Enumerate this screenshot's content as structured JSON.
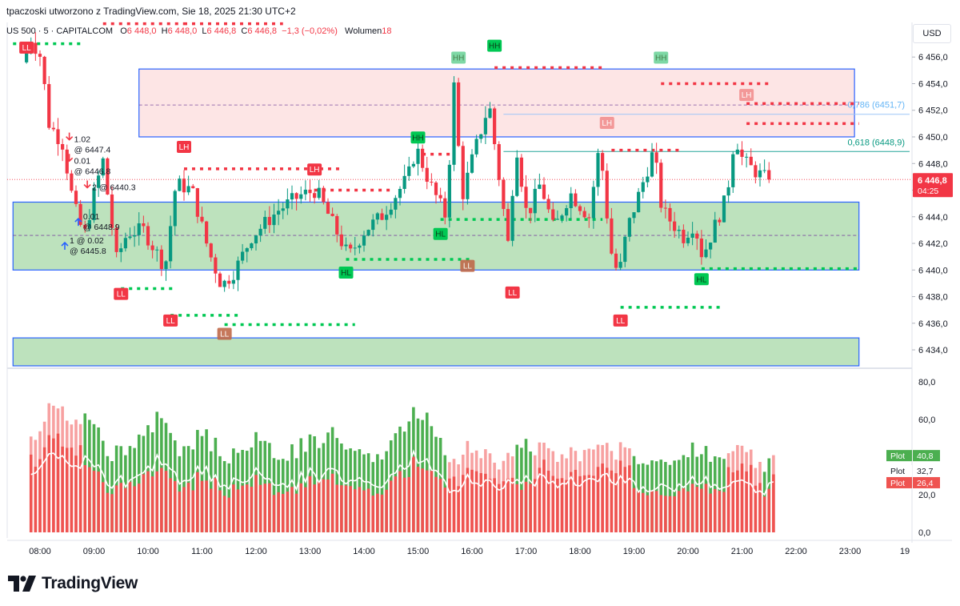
{
  "header": {
    "attribution": "tpaczoski utworzono z TradingView.com, Sie 18, 2025 21:30 UTC+2"
  },
  "legend": {
    "symbol": "US 500 · 5 · CAPITALCOM",
    "o_label": "O",
    "o_value": "6 448,0",
    "h_label": "H",
    "h_value": "6 448,0",
    "l_label": "L",
    "l_value": "6 446,8",
    "c_label": "C",
    "c_value": "6 446,8",
    "change": "−1,3 (−0,02%)",
    "volume_label": "Wolumen",
    "volume_value": "18"
  },
  "toolbar": {
    "currency": "USD"
  },
  "footer": {
    "logo_text": "TradingView"
  },
  "colors": {
    "up": "#089981",
    "down": "#f23645",
    "zone_green": "#b6dfb6",
    "zone_red": "#fde0e1",
    "zone_border": "#2962ff",
    "osc_green": "#4caf50",
    "osc_red": "#ef5350",
    "osc_pink": "#f7a1a1"
  },
  "chart_data": [
    {
      "type": "candlestick",
      "title": "US 500 · 5 · CAPITALCOM",
      "ylim": [
        6432.8,
        6458.6
      ],
      "price_ticks": [
        "6 456,0",
        "6 454,0",
        "6 452,0",
        "6 450,0",
        "6 448,0",
        "6 446,0",
        "6 444,0",
        "6 442,0",
        "6 440,0",
        "6 438,0",
        "6 436,0",
        "6 434,0"
      ],
      "price_tick_values": [
        6456,
        6454,
        6452,
        6450,
        6448,
        6446,
        6444,
        6442,
        6440,
        6438,
        6436,
        6434
      ],
      "time_ticks": [
        "08:00",
        "09:00",
        "10:00",
        "11:00",
        "12:00",
        "13:00",
        "14:00",
        "15:00",
        "16:00",
        "17:00",
        "18:00",
        "19:00",
        "20:00",
        "21:00",
        "22:00",
        "23:00",
        "19"
      ],
      "current_price": "6 446,8",
      "countdown": "04:25",
      "current_value": 6446.8,
      "waypoints": [
        [
          7.75,
          6455.6
        ],
        [
          7.9,
          6457.5
        ],
        [
          8.1,
          6456.0
        ],
        [
          8.25,
          6451.0
        ],
        [
          8.5,
          6449.5
        ],
        [
          8.7,
          6445.0
        ],
        [
          8.9,
          6442.5
        ],
        [
          9.1,
          6446.0
        ],
        [
          9.25,
          6448.2
        ],
        [
          9.5,
          6440.8
        ],
        [
          9.7,
          6442.8
        ],
        [
          10.0,
          6443.0
        ],
        [
          10.4,
          6440.2
        ],
        [
          10.6,
          6446.5
        ],
        [
          10.9,
          6446.0
        ],
        [
          11.2,
          6441.5
        ],
        [
          11.45,
          6438.8
        ],
        [
          11.7,
          6440.0
        ],
        [
          12.0,
          6442.5
        ],
        [
          12.5,
          6444.5
        ],
        [
          12.9,
          6445.6
        ],
        [
          13.2,
          6446.0
        ],
        [
          13.5,
          6443.5
        ],
        [
          13.8,
          6441.0
        ],
        [
          14.1,
          6443.0
        ],
        [
          14.4,
          6444.0
        ],
        [
          14.7,
          6445.8
        ],
        [
          14.9,
          6447.0
        ],
        [
          15.05,
          6449.2
        ],
        [
          15.3,
          6446.5
        ],
        [
          15.6,
          6444.0
        ],
        [
          15.75,
          6453.8
        ],
        [
          15.9,
          6445.5
        ],
        [
          16.1,
          6448.5
        ],
        [
          16.4,
          6452.5
        ],
        [
          16.6,
          6446.5
        ],
        [
          16.75,
          6442.0
        ],
        [
          16.9,
          6449.5
        ],
        [
          17.1,
          6444.0
        ],
        [
          17.35,
          6446.5
        ],
        [
          17.6,
          6443.0
        ],
        [
          17.9,
          6445.8
        ],
        [
          18.25,
          6444.0
        ],
        [
          18.45,
          6449.5
        ],
        [
          18.65,
          6441.5
        ],
        [
          18.8,
          6439.5
        ],
        [
          18.95,
          6443.0
        ],
        [
          19.2,
          6446.0
        ],
        [
          19.45,
          6449.0
        ],
        [
          19.6,
          6444.5
        ],
        [
          19.8,
          6443.5
        ],
        [
          20.0,
          6442.5
        ],
        [
          20.2,
          6443.5
        ],
        [
          20.35,
          6441.0
        ],
        [
          20.6,
          6443.5
        ],
        [
          20.8,
          6445.5
        ],
        [
          20.95,
          6450.2
        ],
        [
          21.1,
          6448.2
        ],
        [
          21.3,
          6447.5
        ],
        [
          21.55,
          6446.8
        ]
      ],
      "zones": [
        {
          "name": "supply-zone",
          "color": "red",
          "from_time": "09:50",
          "to_time": "23:05",
          "low": 6450.0,
          "high": 6455.1,
          "mid": 6452.4
        },
        {
          "name": "demand-zone",
          "color": "green",
          "from_time": "07:30",
          "to_time": "23:10",
          "low": 6440.0,
          "high": 6445.1,
          "mid": 6442.6
        },
        {
          "name": "lower-demand-zone",
          "color": "green",
          "from_time": "07:30",
          "to_time": "23:10",
          "low": 6432.8,
          "high": 6434.9
        }
      ],
      "fib_levels": [
        {
          "label": "0,786 (6451,7)",
          "value": 6451.7
        },
        {
          "label": "0,618 (6448,9)",
          "value": 6448.9
        }
      ],
      "structure_labels": [
        {
          "text": "HH",
          "time": "15:45",
          "price": 6455.2,
          "kind": "hh-faded",
          "pos": "above"
        },
        {
          "text": "HH",
          "time": "16:25",
          "price": 6456.1,
          "kind": "hh",
          "pos": "above"
        },
        {
          "text": "HH",
          "time": "19:30",
          "price": 6455.2,
          "kind": "hh-faded",
          "pos": "above"
        },
        {
          "text": "HH",
          "time": "15:00",
          "price": 6449.2,
          "kind": "hh",
          "pos": "above"
        },
        {
          "text": "LH",
          "time": "10:40",
          "price": 6448.5,
          "kind": "lh",
          "pos": "above"
        },
        {
          "text": "LH",
          "time": "13:05",
          "price": 6446.8,
          "kind": "lh",
          "pos": "above"
        },
        {
          "text": "LH",
          "time": "18:30",
          "price": 6450.3,
          "kind": "lh-faded",
          "pos": "above"
        },
        {
          "text": "LH",
          "time": "21:05",
          "price": 6452.4,
          "kind": "lh-faded",
          "pos": "above"
        },
        {
          "text": "HL",
          "time": "13:40",
          "price": 6440.5,
          "kind": "hl",
          "pos": "below"
        },
        {
          "text": "HL",
          "time": "15:25",
          "price": 6443.4,
          "kind": "hl",
          "pos": "below"
        },
        {
          "text": "HL",
          "time": "20:15",
          "price": 6440.0,
          "kind": "hl",
          "pos": "below"
        },
        {
          "text": "LL",
          "time": "07:45",
          "price": 6457.4,
          "kind": "ll",
          "pos": "below"
        },
        {
          "text": "LL",
          "time": "09:30",
          "price": 6438.9,
          "kind": "ll",
          "pos": "below"
        },
        {
          "text": "LL",
          "time": "10:25",
          "price": 6436.9,
          "kind": "ll",
          "pos": "below"
        },
        {
          "text": "LL",
          "time": "11:25",
          "price": 6435.9,
          "kind": "ll-faded",
          "pos": "below"
        },
        {
          "text": "LL",
          "time": "15:55",
          "price": 6441.0,
          "kind": "ll-faded",
          "pos": "below"
        },
        {
          "text": "LL",
          "time": "16:45",
          "price": 6439.0,
          "kind": "ll",
          "pos": "below"
        },
        {
          "text": "LL",
          "time": "18:45",
          "price": 6436.9,
          "kind": "ll",
          "pos": "below"
        }
      ],
      "level_lines": [
        {
          "color": "green",
          "from": "07:30",
          "to": "08:50",
          "price": 6457.0
        },
        {
          "color": "red",
          "from": "09:10",
          "to": "10:40",
          "price": 6458.5
        },
        {
          "color": "red",
          "from": "10:40",
          "to": "12:30",
          "price": 6458.5
        },
        {
          "color": "red",
          "from": "10:40",
          "to": "13:35",
          "price": 6447.6
        },
        {
          "color": "red",
          "from": "13:05",
          "to": "14:30",
          "price": 6446.0
        },
        {
          "color": "red",
          "from": "15:05",
          "to": "15:40",
          "price": 6448.7
        },
        {
          "color": "red",
          "from": "16:25",
          "to": "18:25",
          "price": 6455.2
        },
        {
          "color": "red",
          "from": "18:35",
          "to": "19:50",
          "price": 6449.0
        },
        {
          "color": "red",
          "from": "19:30",
          "to": "21:30",
          "price": 6454.0
        },
        {
          "color": "red",
          "from": "21:05",
          "to": "23:10",
          "price": 6452.5
        },
        {
          "color": "red",
          "from": "21:05",
          "to": "23:10",
          "price": 6451.0
        },
        {
          "color": "green",
          "from": "09:30",
          "to": "10:30",
          "price": 6438.6
        },
        {
          "color": "green",
          "from": "10:25",
          "to": "11:45",
          "price": 6436.6
        },
        {
          "color": "green",
          "from": "11:25",
          "to": "13:50",
          "price": 6435.9
        },
        {
          "color": "green",
          "from": "13:40",
          "to": "16:00",
          "price": 6440.8
        },
        {
          "color": "green",
          "from": "15:25",
          "to": "18:25",
          "price": 6443.8
        },
        {
          "color": "green",
          "from": "18:45",
          "to": "20:40",
          "price": 6437.2
        },
        {
          "color": "green",
          "from": "20:15",
          "to": "23:10",
          "price": 6440.1
        }
      ],
      "signals": [
        {
          "line1": "1.02",
          "line2": "@ 6447.4",
          "time": "08:45",
          "price": 6449.6,
          "kind": "sell"
        },
        {
          "line1": "0.01",
          "line2": "@ 6446.8",
          "time": "08:45",
          "price": 6448.0,
          "kind": "sell"
        },
        {
          "line1": "2 @ 6440.3",
          "line2": "",
          "time": "09:05",
          "price": 6446.0,
          "kind": "sell"
        },
        {
          "line1": "0.01",
          "line2": "@ 6448.9",
          "time": "08:55",
          "price": 6443.8,
          "kind": "buy"
        },
        {
          "line1": "1 @ 0.02",
          "line2": "@ 6445.8",
          "time": "08:40",
          "price": 6442.0,
          "kind": "buy"
        }
      ]
    },
    {
      "type": "bar",
      "title": "Plot",
      "ylim": [
        -3,
        86
      ],
      "y_ticks": [
        "80,0",
        "60,0",
        "20,0",
        "0,0"
      ],
      "y_tick_values": [
        80,
        60,
        20,
        0
      ],
      "series": [
        {
          "name": "Plot",
          "value": "40,8",
          "color": "#4caf50"
        },
        {
          "name": "Plot",
          "value": "32,7",
          "color": "#ffffff"
        },
        {
          "name": "Plot",
          "value": "26,4",
          "color": "#ef5350"
        }
      ],
      "time_range": [
        "07:50",
        "21:35"
      ]
    }
  ]
}
